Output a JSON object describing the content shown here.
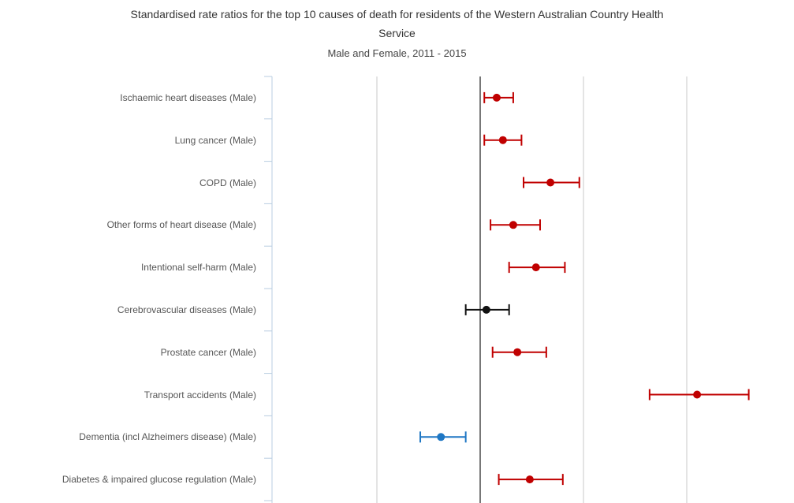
{
  "chart_data": {
    "type": "forest",
    "title_line1": "Standardised rate ratios for the top 10 causes of death for residents of the Western Australian Country Health",
    "title_line2": "Service",
    "subtitle": "Male and Female, 2011 - 2015",
    "reference_line": 1.0,
    "categories": [
      "Ischaemic heart diseases (Male)",
      "Lung cancer (Male)",
      "COPD (Male)",
      "Other forms of heart disease (Male)",
      "Intentional self-harm (Male)",
      "Cerebrovascular diseases (Male)",
      "Prostate cancer (Male)",
      "Transport accidents (Male)",
      "Dementia (incl Alzheimers disease) (Male)",
      "Diabetes & impaired glucose regulation (Male)"
    ],
    "ratios": [
      1.08,
      1.11,
      1.34,
      1.16,
      1.27,
      1.03,
      1.18,
      2.05,
      0.81,
      1.24
    ],
    "lower": [
      1.02,
      1.02,
      1.21,
      1.05,
      1.14,
      0.93,
      1.06,
      1.82,
      0.71,
      1.09
    ],
    "upper": [
      1.16,
      1.2,
      1.48,
      1.29,
      1.41,
      1.14,
      1.32,
      2.3,
      0.93,
      1.4
    ],
    "significance": [
      "higher",
      "higher",
      "higher",
      "higher",
      "higher",
      "not significant",
      "higher",
      "higher",
      "lower",
      "higher"
    ],
    "colors": {
      "higher": "#c00000",
      "not significant": "#111111",
      "lower": "#1f77c4"
    },
    "xlim": [
      0.0,
      2.5
    ],
    "vertical_gridlines": [
      0.5,
      1.5,
      2.0
    ],
    "grid": true
  }
}
